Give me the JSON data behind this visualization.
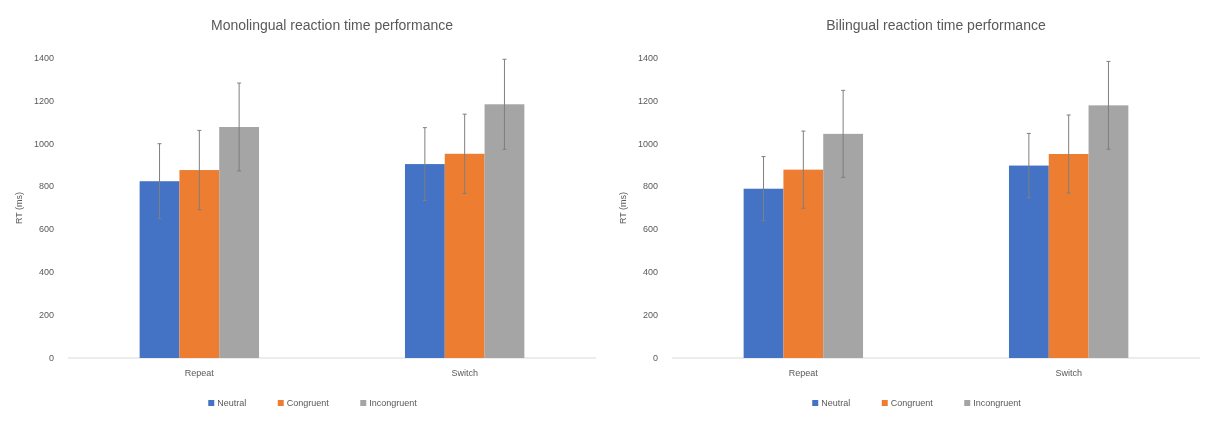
{
  "chart_data": [
    {
      "type": "bar",
      "title": "Monolingual reaction time performance",
      "ylabel": "RT (ms)",
      "categories": [
        "Repeat",
        "Switch"
      ],
      "ylim": [
        0,
        1400
      ],
      "yticks": [
        0,
        200,
        400,
        600,
        800,
        1000,
        1200,
        1400
      ],
      "grid": false,
      "legend": "bottom",
      "series": [
        {
          "name": "Neutral",
          "color": "#4472c4",
          "values": [
            825,
            905
          ],
          "errors": [
            175,
            170
          ]
        },
        {
          "name": "Congruent",
          "color": "#ed7d31",
          "values": [
            877,
            953
          ],
          "errors": [
            185,
            185
          ]
        },
        {
          "name": "Incongruent",
          "color": "#a5a5a5",
          "values": [
            1078,
            1184
          ],
          "errors": [
            205,
            210
          ]
        }
      ]
    },
    {
      "type": "bar",
      "title": "Bilingual reaction time performance",
      "ylabel": "RT (ms)",
      "categories": [
        "Repeat",
        "Switch"
      ],
      "ylim": [
        0,
        1400
      ],
      "yticks": [
        0,
        200,
        400,
        600,
        800,
        1000,
        1200,
        1400
      ],
      "grid": false,
      "legend": "bottom",
      "series": [
        {
          "name": "Neutral",
          "color": "#4472c4",
          "values": [
            790,
            898
          ],
          "errors": [
            150,
            150
          ]
        },
        {
          "name": "Congruent",
          "color": "#ed7d31",
          "values": [
            879,
            952
          ],
          "errors": [
            180,
            182
          ]
        },
        {
          "name": "Incongruent",
          "color": "#a5a5a5",
          "values": [
            1046,
            1179
          ],
          "errors": [
            203,
            205
          ]
        }
      ]
    }
  ]
}
